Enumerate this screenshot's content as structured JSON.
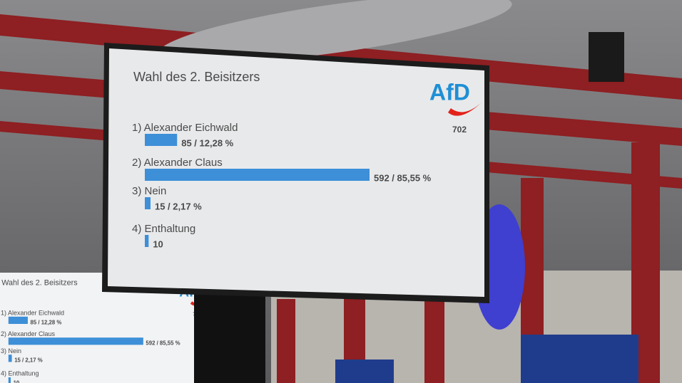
{
  "chart_data": {
    "type": "bar",
    "orientation": "horizontal",
    "title": "Wahl des 2. Beisitzers",
    "categories": [
      "1) Alexander Eichwald",
      "2) Alexander Claus",
      "3) Nein",
      "4) Enthaltung"
    ],
    "values": [
      85,
      592,
      15,
      10
    ],
    "value_labels": [
      "85 / 12,28 %",
      "592 / 85,55 %",
      "15 / 2,17 %",
      "10"
    ],
    "color": "#3d8fd8"
  },
  "logo": {
    "text": "AfD",
    "number": 702
  }
}
